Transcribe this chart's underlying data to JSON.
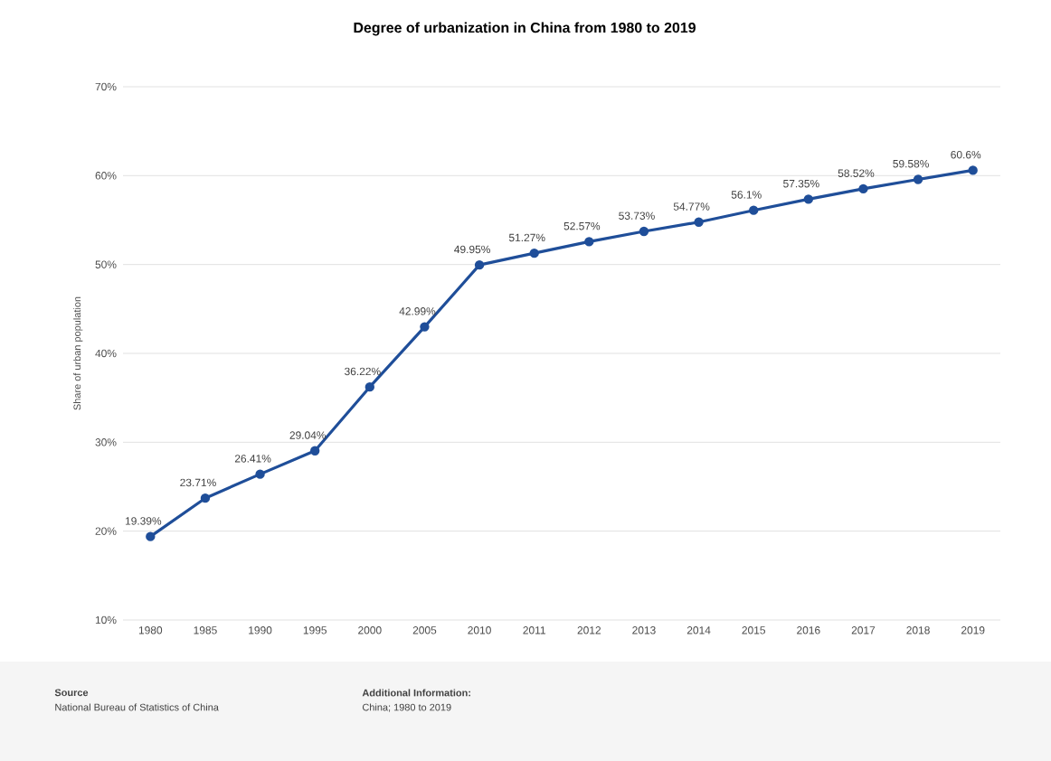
{
  "chart_data": {
    "type": "line",
    "title": "Degree of urbanization in China from 1980 to 2019",
    "ylabel": "Share of urban population",
    "categories": [
      "1980",
      "1985",
      "1990",
      "1995",
      "2000",
      "2005",
      "2010",
      "2011",
      "2012",
      "2013",
      "2014",
      "2015",
      "2016",
      "2017",
      "2018",
      "2019"
    ],
    "values": [
      19.39,
      23.71,
      26.41,
      29.04,
      36.22,
      42.99,
      49.95,
      51.27,
      52.57,
      53.73,
      54.77,
      56.1,
      57.35,
      58.52,
      59.58,
      60.6
    ],
    "value_labels": [
      "19.39%",
      "23.71%",
      "26.41%",
      "29.04%",
      "36.22%",
      "42.99%",
      "49.95%",
      "51.27%",
      "52.57%",
      "53.73%",
      "54.77%",
      "56.1%",
      "57.35%",
      "58.52%",
      "59.58%",
      "60.6%"
    ],
    "color": "#1f4e99",
    "marker": "circle",
    "line_style": "solid",
    "grid": "y",
    "ylim": [
      10,
      70
    ],
    "yticks": [
      {
        "value": 10,
        "label": "10%"
      },
      {
        "value": 20,
        "label": "20%"
      },
      {
        "value": 30,
        "label": "30%"
      },
      {
        "value": 40,
        "label": "40%"
      },
      {
        "value": 50,
        "label": "50%"
      },
      {
        "value": 60,
        "label": "60%"
      },
      {
        "value": 70,
        "label": "70%"
      }
    ],
    "annotations": [
      "Source",
      "National Bureau of Statistics of China",
      "Additional Information:",
      "China; 1980 to 2019"
    ]
  }
}
